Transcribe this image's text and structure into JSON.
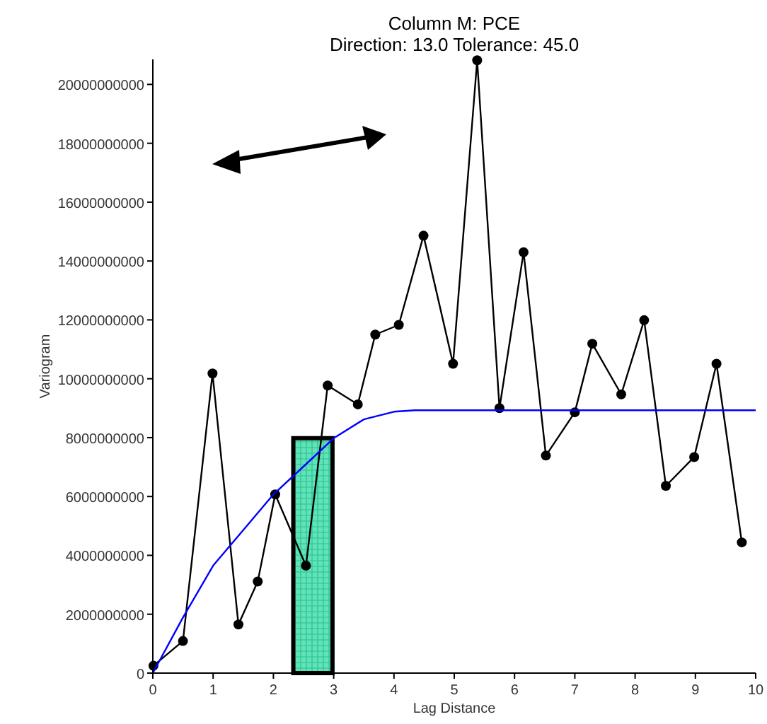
{
  "chart_data": {
    "type": "line",
    "title": "Column M:  PCE",
    "subtitle": "Direction: 13.0   Tolerance: 45.0",
    "xlabel": "Lag Distance",
    "ylabel": "Variogram",
    "xlim": [
      0,
      10
    ],
    "xticks": [
      0,
      1,
      2,
      3,
      4,
      5,
      6,
      7,
      8,
      9,
      10
    ],
    "ylim": [
      0,
      20850000000
    ],
    "yticks": [
      0,
      2000000000,
      4000000000,
      6000000000,
      8000000000,
      10000000000,
      12000000000,
      14000000000,
      16000000000,
      18000000000,
      20000000000
    ],
    "grid": false,
    "series": [
      {
        "type": "bar",
        "x": [
          2.655
        ],
        "values": [
          7980000000
        ],
        "color": "#5fe3b9"
      },
      {
        "color": "#000000",
        "marker": "circle",
        "x": [
          0.01,
          0.5,
          0.99,
          1.42,
          1.74,
          2.03,
          2.54,
          2.9,
          3.4,
          3.69,
          4.08,
          4.49,
          4.98,
          5.38,
          5.75,
          6.15,
          6.52,
          7.0,
          7.29,
          7.77,
          8.15,
          8.51,
          8.98,
          9.35,
          9.77
        ],
        "values": [
          250000000,
          1090000000,
          10180000000,
          1650000000,
          3110000000,
          6070000000,
          3650000000,
          9770000000,
          9130000000,
          11500000000,
          11830000000,
          14860000000,
          10510000000,
          20820000000,
          9000000000,
          14300000000,
          7390000000,
          8860000000,
          11190000000,
          9470000000,
          11990000000,
          6360000000,
          7340000000,
          10510000000,
          4440000000
        ]
      },
      {
        "color": "#0000ff",
        "marker": "none",
        "x": [
          0,
          0.5,
          1,
          1.5,
          2,
          2.5,
          3,
          3.5,
          4,
          4.35,
          10
        ],
        "values": [
          0,
          1890000000,
          3650000000,
          4860000000,
          6070000000,
          7020000000,
          7980000000,
          8620000000,
          8880000000,
          8930000000,
          8930000000
        ]
      }
    ]
  }
}
